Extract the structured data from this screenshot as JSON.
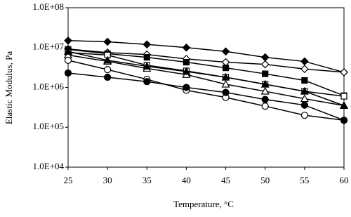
{
  "chart_data": {
    "type": "line",
    "x_label": "Temperature, °C",
    "y_label": "Elastic Modulus, Pa",
    "x": [
      25,
      30,
      35,
      40,
      45,
      50,
      55,
      60
    ],
    "xlim": [
      25,
      60
    ],
    "xticks": [
      25,
      30,
      35,
      40,
      45,
      50,
      55,
      60
    ],
    "ylim": [
      10000,
      100000000
    ],
    "y_scale": "log",
    "yticks": [
      {
        "value": 10000,
        "label": "1.0E+04"
      },
      {
        "value": 100000,
        "label": "1.0E+05"
      },
      {
        "value": 1000000,
        "label": "1.0E+06"
      },
      {
        "value": 10000000,
        "label": "1.0E+07"
      },
      {
        "value": 100000000,
        "label": "1.0E+08"
      }
    ],
    "grid": false,
    "series": [
      {
        "color": "#000000",
        "marker": "diamond",
        "marker_fill": "filled",
        "values": [
          15000000,
          14000000,
          12000000,
          10000000,
          8000000,
          5700000,
          4500000,
          2400000
        ]
      },
      {
        "color": "#000000",
        "marker": "diamond",
        "marker_fill": "open",
        "values": [
          9200000,
          7500000,
          6700000,
          5200000,
          4300000,
          3800000,
          2900000,
          2400000
        ]
      },
      {
        "color": "#000000",
        "marker": "square",
        "marker_fill": "filled",
        "values": [
          9000000,
          7000000,
          5700000,
          4300000,
          3100000,
          2200000,
          1500000,
          620000
        ]
      },
      {
        "color": "#000000",
        "marker": "square",
        "marker_fill": "open",
        "values": [
          7500000,
          6500000,
          3600000,
          2600000,
          1800000,
          1200000,
          800000,
          600000
        ]
      },
      {
        "color": "#000000",
        "marker": "triangle",
        "marker_fill": "open",
        "values": [
          6500000,
          4500000,
          3000000,
          2100000,
          1200000,
          800000,
          520000,
          350000
        ]
      },
      {
        "color": "#000000",
        "marker": "triangle",
        "marker_fill": "filled",
        "values": [
          8000000,
          4800000,
          3400000,
          2500000,
          1800000,
          1200000,
          800000,
          350000
        ]
      },
      {
        "color": "#000000",
        "marker": "circle",
        "marker_fill": "open",
        "values": [
          4800000,
          2800000,
          1600000,
          850000,
          560000,
          340000,
          200000,
          150000
        ]
      },
      {
        "color": "#000000",
        "marker": "circle",
        "marker_fill": "filled",
        "values": [
          2300000,
          1800000,
          1400000,
          1000000,
          750000,
          500000,
          360000,
          150000
        ]
      }
    ]
  }
}
